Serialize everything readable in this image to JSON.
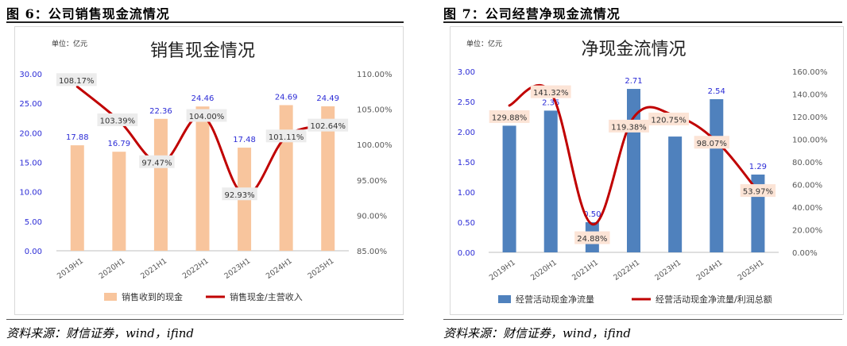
{
  "left": {
    "figure_title": "图 6：公司销售现金流情况",
    "source": "资料来源：财信证券，wind，ifind",
    "chart_data": {
      "type": "bar",
      "title": "销售现金情况",
      "unit_label": "单位：亿元",
      "categories": [
        "2019H1",
        "2020H1",
        "2021H1",
        "2022H1",
        "2023H1",
        "2024H1",
        "2025H1"
      ],
      "left_axis": {
        "min": 0,
        "max": 30,
        "ticks": [
          "0.00",
          "5.00",
          "10.00",
          "15.00",
          "20.00",
          "25.00",
          "30.00"
        ]
      },
      "right_axis": {
        "min": 85,
        "max": 110,
        "ticks": [
          "85.00%",
          "90.00%",
          "95.00%",
          "100.00%",
          "105.00%",
          "110.00%"
        ]
      },
      "bar_series": {
        "name": "销售收到的现金",
        "color": "#f8c59d",
        "values": [
          17.88,
          16.79,
          22.36,
          24.46,
          17.48,
          24.69,
          24.49
        ],
        "labels": [
          "17.88",
          "16.79",
          "22.36",
          "24.46",
          "17.48",
          "24.69",
          "24.49"
        ]
      },
      "line_series": {
        "name": "销售现金/主营收入",
        "color": "#c00000",
        "values": [
          108.17,
          103.39,
          97.47,
          104.0,
          92.93,
          101.11,
          102.64
        ],
        "labels": [
          "108.17%",
          "103.39%",
          "97.47%",
          "104.00%",
          "92.93%",
          "101.11%",
          "102.64%"
        ]
      },
      "legend_position": "bottom",
      "grid": false
    }
  },
  "right": {
    "figure_title": "图 7：公司经营净现金流情况",
    "source": "资料来源：财信证券，wind，ifind",
    "chart_data": {
      "type": "bar",
      "title": "净现金流情况",
      "unit_label": "单位：亿元",
      "categories": [
        "2019H1",
        "2020H1",
        "2021H1",
        "2022H1",
        "2023H1",
        "2024H1",
        "2025H1"
      ],
      "left_axis": {
        "min": 0,
        "max": 3,
        "ticks": [
          "0.00",
          "0.50",
          "1.00",
          "1.50",
          "2.00",
          "2.50",
          "3.00"
        ]
      },
      "right_axis": {
        "min": 0,
        "max": 160,
        "ticks": [
          "0.00%",
          "20.00%",
          "40.00%",
          "60.00%",
          "80.00%",
          "100.00%",
          "120.00%",
          "140.00%",
          "160.00%"
        ]
      },
      "bar_series": {
        "name": "经营活动现金净流量",
        "color": "#4f81bd",
        "values": [
          2.1,
          2.35,
          0.5,
          2.71,
          1.92,
          2.54,
          1.29
        ],
        "labels": [
          "",
          "2.35",
          "0.50",
          "2.71",
          "",
          "2.54",
          "1.29"
        ]
      },
      "line_series": {
        "name": "经营活动现金净流量/利润总额",
        "color": "#c00000",
        "values": [
          129.88,
          141.32,
          24.88,
          119.38,
          120.75,
          98.07,
          53.97
        ],
        "labels": [
          "129.88%",
          "141.32%",
          "24.88%",
          "119.38%",
          "120.75%",
          "98.07%",
          "53.97%"
        ]
      },
      "legend_position": "bottom",
      "grid": false
    }
  }
}
